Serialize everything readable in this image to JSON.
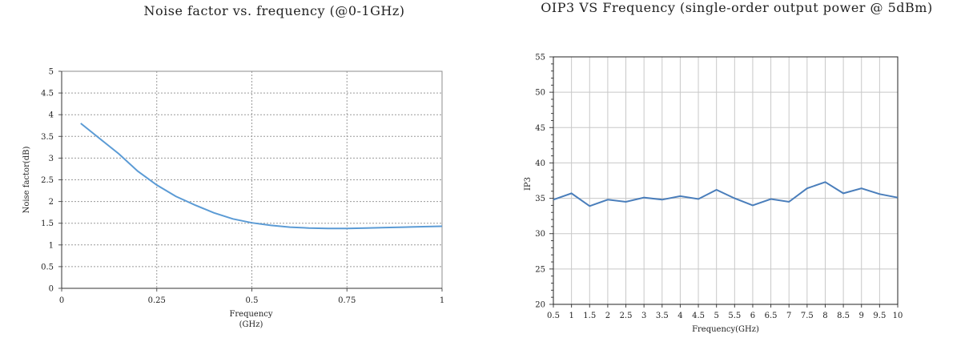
{
  "chart_data": [
    {
      "type": "line",
      "title": "Noise factor vs. frequency (@0-1GHz)",
      "xlabel": "Frequency",
      "xlabel_unit": "(GHz)",
      "ylabel": "Noise factor(dB)",
      "xlim": [
        0,
        1
      ],
      "ylim": [
        0,
        5
      ],
      "x_ticks": [
        "0",
        "0.25",
        "0.5",
        "0.75",
        "1"
      ],
      "y_ticks": [
        "0",
        "0.5",
        "1",
        "1.5",
        "2",
        "2.5",
        "3",
        "3.5",
        "4",
        "4.5",
        "5"
      ],
      "grid": true,
      "series_color": "#5b9bd5",
      "series": [
        {
          "x": [
            0.05,
            0.1,
            0.15,
            0.2,
            0.25,
            0.3,
            0.35,
            0.4,
            0.45,
            0.5,
            0.55,
            0.6,
            0.65,
            0.7,
            0.75,
            0.8,
            0.85,
            0.9,
            0.95,
            1.0
          ],
          "values": [
            3.8,
            3.45,
            3.1,
            2.7,
            2.38,
            2.12,
            1.92,
            1.74,
            1.6,
            1.51,
            1.45,
            1.41,
            1.39,
            1.38,
            1.38,
            1.39,
            1.4,
            1.41,
            1.42,
            1.43
          ]
        }
      ]
    },
    {
      "type": "line",
      "title": "OIP3 VS Frequency (single-order output power @ 5dBm)",
      "xlabel": "Frequency(GHz)",
      "ylabel": "IP3",
      "xlim": [
        0.5,
        10
      ],
      "ylim": [
        20,
        55
      ],
      "x_ticks": [
        "0.5",
        "1",
        "1.5",
        "2",
        "2.5",
        "3",
        "3.5",
        "4",
        "4.5",
        "5",
        "5.5",
        "6",
        "6.5",
        "7",
        "7.5",
        "8",
        "8.5",
        "9",
        "9.5",
        "10"
      ],
      "y_ticks": [
        "20",
        "25",
        "30",
        "35",
        "40",
        "45",
        "50",
        "55"
      ],
      "grid": true,
      "series_color": "#4a7ebb",
      "series": [
        {
          "x": [
            0.5,
            1,
            1.5,
            2,
            2.5,
            3,
            3.5,
            4,
            4.5,
            5,
            5.5,
            6,
            6.5,
            7,
            7.5,
            8,
            8.5,
            9,
            9.5,
            10
          ],
          "values": [
            34.8,
            35.7,
            33.9,
            34.8,
            34.5,
            35.1,
            34.8,
            35.3,
            34.9,
            36.2,
            35.0,
            34.0,
            34.9,
            34.5,
            36.4,
            37.3,
            35.7,
            36.4,
            35.6,
            35.1
          ]
        }
      ]
    }
  ]
}
